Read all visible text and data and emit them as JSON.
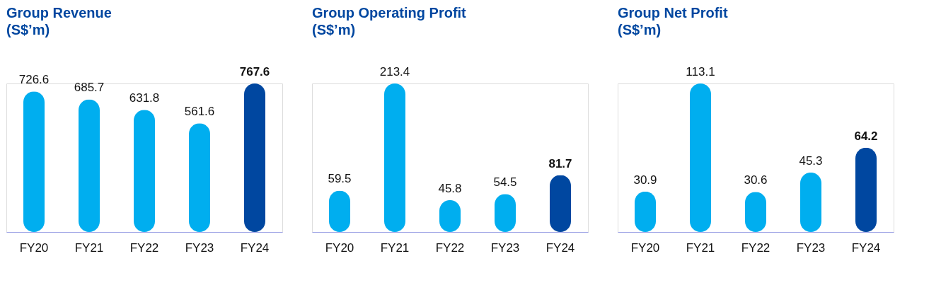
{
  "chart_data": [
    {
      "type": "bar",
      "title": "Group Revenue\n(S$’m)",
      "categories": [
        "FY20",
        "FY21",
        "FY22",
        "FY23",
        "FY24"
      ],
      "values": [
        726.6,
        685.7,
        631.8,
        561.6,
        767.6
      ],
      "colors": [
        "#00aeef",
        "#00aeef",
        "#00aeef",
        "#00aeef",
        "#0047a0"
      ],
      "data_labels": true,
      "tick_labels": "x"
    },
    {
      "type": "bar",
      "title": "Group Operating Profit\n(S$’m)",
      "categories": [
        "FY20",
        "FY21",
        "FY22",
        "FY23",
        "FY24"
      ],
      "values": [
        59.5,
        213.4,
        45.8,
        54.5,
        81.7
      ],
      "colors": [
        "#00aeef",
        "#00aeef",
        "#00aeef",
        "#00aeef",
        "#0047a0"
      ],
      "data_labels": true,
      "tick_labels": "x"
    },
    {
      "type": "bar",
      "title": "Group Net Profit\n(S$’m)",
      "categories": [
        "FY20",
        "FY21",
        "FY22",
        "FY23",
        "FY24"
      ],
      "values": [
        30.9,
        113.1,
        30.6,
        45.3,
        64.2
      ],
      "colors": [
        "#00aeef",
        "#00aeef",
        "#00aeef",
        "#00aeef",
        "#0047a0"
      ],
      "data_labels": true,
      "tick_labels": "x"
    }
  ]
}
